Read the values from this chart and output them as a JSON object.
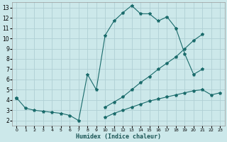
{
  "xlabel": "Humidex (Indice chaleur)",
  "bg_color": "#cce8ea",
  "grid_color": "#b0d0d4",
  "line_color": "#1a6b6b",
  "xlim": [
    -0.5,
    23.5
  ],
  "ylim": [
    1.5,
    13.5
  ],
  "xticks": [
    0,
    1,
    2,
    3,
    4,
    5,
    6,
    7,
    8,
    9,
    10,
    11,
    12,
    13,
    14,
    15,
    16,
    17,
    18,
    19,
    20,
    21,
    22,
    23
  ],
  "yticks": [
    2,
    3,
    4,
    5,
    6,
    7,
    8,
    9,
    10,
    11,
    12,
    13
  ],
  "line1_x": [
    0,
    1,
    2,
    3,
    4,
    5,
    6,
    7,
    8,
    9,
    10,
    11,
    12,
    13,
    14,
    15,
    16,
    17,
    18,
    19,
    20,
    21
  ],
  "line1_y": [
    4.2,
    3.2,
    3.0,
    2.9,
    2.8,
    2.7,
    2.5,
    2.0,
    6.5,
    5.0,
    10.3,
    11.7,
    12.5,
    13.2,
    12.4,
    12.4,
    11.7,
    12.1,
    11.0,
    8.5,
    6.5,
    7.0
  ],
  "line2_x": [
    0,
    10,
    11,
    12,
    13,
    14,
    15,
    16,
    17,
    18,
    19,
    20,
    21
  ],
  "line2_y": [
    4.2,
    3.3,
    3.8,
    4.3,
    5.0,
    5.7,
    6.3,
    7.0,
    7.6,
    8.2,
    9.0,
    9.8,
    10.4
  ],
  "line3_x": [
    0,
    10,
    11,
    12,
    13,
    14,
    15,
    16,
    17,
    18,
    19,
    20,
    21,
    22,
    23
  ],
  "line3_y": [
    4.2,
    2.3,
    2.7,
    3.0,
    3.3,
    3.6,
    3.9,
    4.1,
    4.3,
    4.5,
    4.7,
    4.9,
    5.0,
    4.5,
    4.7
  ]
}
